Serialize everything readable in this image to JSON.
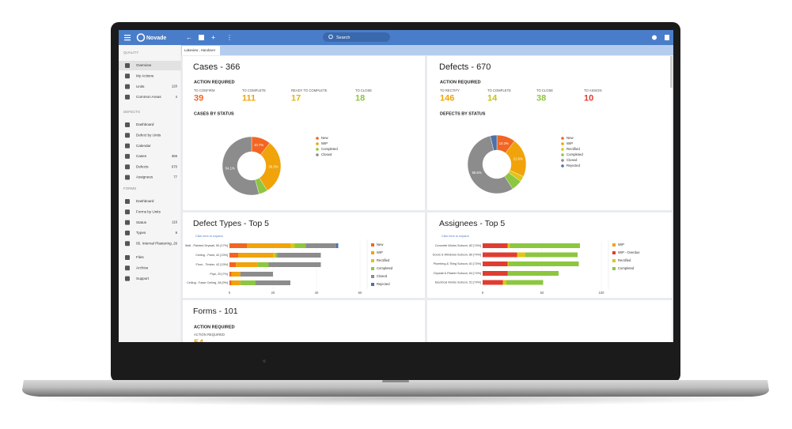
{
  "app": {
    "brand": "Novade",
    "search": "Search",
    "tab": "Lakeview , Handover"
  },
  "sidebar": {
    "sections": [
      {
        "title": "QUALITY",
        "items": [
          {
            "label": "Overview"
          },
          {
            "label": "My Actions"
          },
          {
            "label": "Units",
            "count": 120
          },
          {
            "label": "Common Areas",
            "count": 4
          }
        ]
      },
      {
        "title": "DEFECTS",
        "items": [
          {
            "label": "Dashboard"
          },
          {
            "label": "Defect by Units"
          },
          {
            "label": "Calendar"
          },
          {
            "label": "Cases",
            "count": 366
          },
          {
            "label": "Defects",
            "count": 670
          },
          {
            "label": "Assignees",
            "count": 77
          }
        ]
      },
      {
        "title": "FORMS",
        "items": [
          {
            "label": "Dashboard"
          },
          {
            "label": "Forms by Units"
          },
          {
            "label": "Status",
            "count": 116
          },
          {
            "label": "Types",
            "count": 9
          },
          {
            "label": "05. Internal Plastering...",
            "count": 26
          }
        ]
      }
    ],
    "footer": [
      {
        "label": "Files"
      },
      {
        "label": "Archive"
      },
      {
        "label": "Support"
      }
    ]
  },
  "cases": {
    "title": "Cases - 366",
    "action_title": "ACTION REQUIRED",
    "actions": [
      {
        "label": "TO CONFIRM",
        "value": 39,
        "color": "#f26522"
      },
      {
        "label": "TO COMPLETE",
        "value": 111,
        "color": "#f0a30a"
      },
      {
        "label": "READY TO COMPLETE",
        "value": 17,
        "color": "#e0b415"
      },
      {
        "label": "TO CLOSE",
        "value": 18,
        "color": "#8dc63f"
      }
    ],
    "chart_title": "CASES BY STATUS",
    "chart": {
      "type": "pie",
      "categories": [
        "New",
        "WIP",
        "Completed",
        "Closed"
      ],
      "values": [
        10.7,
        30.3,
        4.9,
        54.1
      ],
      "value_labels": [
        "10.7%",
        "30.3%",
        null,
        "54.1%"
      ],
      "colors": [
        "#f26522",
        "#f0a30a",
        "#8dc63f",
        "#8c8c8c"
      ]
    }
  },
  "defects": {
    "title": "Defects - 670",
    "action_title": "ACTION REQUIRED",
    "actions": [
      {
        "label": "TO RECTIFY",
        "value": 146,
        "color": "#f0a30a"
      },
      {
        "label": "TO COMPLETE",
        "value": 14,
        "color": "#c2c21a"
      },
      {
        "label": "TO CLOSE",
        "value": 38,
        "color": "#8dc63f"
      },
      {
        "label": "TO ASSIGN",
        "value": 10,
        "color": "#e03c31"
      }
    ],
    "chart_title": "DEFECTS BY STATUS",
    "chart": {
      "type": "pie",
      "categories": [
        "New",
        "WIP",
        "Rectified",
        "Completed",
        "Closed",
        "Rejected"
      ],
      "values": [
        10.3,
        21.6,
        3,
        6,
        55.5,
        3.6
      ],
      "value_labels": [
        "10.3%",
        "21.6%",
        null,
        null,
        "55.5%",
        null
      ],
      "colors": [
        "#f26522",
        "#f0a30a",
        "#e0c419",
        "#8dc63f",
        "#8c8c8c",
        "#4f6fa8"
      ]
    }
  },
  "defect_types": {
    "title": "Defect Types - Top 5",
    "expand": "Click here to expand",
    "chart": {
      "type": "bar",
      "categories": [
        "Wall - Painted Drywall, 50 [17%]",
        "Ceiling - Paint, 42 [13%]",
        "Floor - Timber, 42 [13%]",
        "Pipe, 20 [7%]",
        "Ceiling - False Ceiling, 28 [9%]"
      ],
      "series": [
        {
          "name": "New",
          "color": "#f26522",
          "values": [
            8,
            4,
            3,
            1,
            1
          ]
        },
        {
          "name": "WIP",
          "color": "#f0a30a",
          "values": [
            20,
            16,
            10,
            4,
            4
          ]
        },
        {
          "name": "Rectified",
          "color": "#e0c419",
          "values": [
            2,
            1,
            0,
            0,
            0
          ]
        },
        {
          "name": "Completed",
          "color": "#8dc63f",
          "values": [
            5,
            1,
            5,
            0,
            7
          ]
        },
        {
          "name": "Closed",
          "color": "#8c8c8c",
          "values": [
            14,
            20,
            24,
            15,
            16
          ]
        },
        {
          "name": "Rejected",
          "color": "#4f6fa8",
          "values": [
            1,
            0,
            0,
            0,
            0
          ]
        }
      ],
      "xlim": [
        0,
        60
      ],
      "xticks": [
        0,
        20,
        40,
        60
      ]
    }
  },
  "assignees": {
    "title": "Assignees - Top 5",
    "expand": "Click here to expand",
    "chart": {
      "type": "bar",
      "categories": [
        "Concrete Works Subcon, 82 [74%]",
        "Doors & Windows Subcon, 80 [74%]",
        "Plumbing & Tiling Subcon, 81 [74%]",
        "Drywall & Plaster Subcon, 64 [74%]",
        "Electrical Works Subcon, 51 [74%]"
      ],
      "series": [
        {
          "name": "WIP",
          "color": "#f0a30a",
          "values": [
            0,
            0,
            0,
            0,
            0
          ]
        },
        {
          "name": "WIP - Overdue",
          "color": "#e03c31",
          "values": [
            21,
            29,
            21,
            21,
            17
          ]
        },
        {
          "name": "Rectified",
          "color": "#e0c419",
          "values": [
            2,
            7,
            1,
            0,
            3
          ]
        },
        {
          "name": "Completed",
          "color": "#8dc63f",
          "values": [
            59,
            44,
            59,
            43,
            31
          ]
        }
      ],
      "xlim": [
        0,
        100
      ],
      "xticks": [
        0,
        50,
        100
      ]
    }
  },
  "forms": {
    "title": "Forms - 101",
    "action_title": "ACTION REQUIRED",
    "action_label": "ACTION REQUIRED",
    "action_value": 54
  }
}
